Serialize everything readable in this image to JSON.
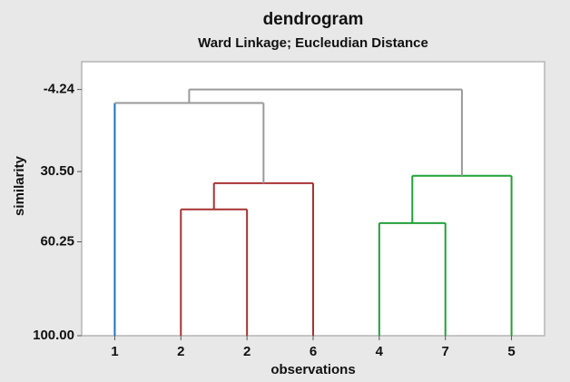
{
  "chart_data": {
    "type": "dendrogram",
    "title": "dendrogram",
    "subtitle": "Ward Linkage; Eucleudian Distance",
    "x_label": "observations",
    "y_label": "similarity",
    "categories": [
      "1",
      "2",
      "2",
      "6",
      "4",
      "7",
      "5"
    ],
    "leaf_colors": [
      "#1f6fc4",
      "#a83232",
      "#a83232",
      "#a83232",
      "#22a03a",
      "#22a03a",
      "#22a03a"
    ],
    "merges": [
      {
        "children": [
          1,
          2
        ],
        "height": 46.5,
        "color": "#a83232"
      },
      {
        "children": [
          7,
          3
        ],
        "height": 35.4,
        "color": "#a83232"
      },
      {
        "children": [
          0,
          8
        ],
        "height": 1.5,
        "color": "#9a9a9a"
      },
      {
        "children": [
          4,
          5
        ],
        "height": 52.3,
        "color": "#22a03a"
      },
      {
        "children": [
          10,
          6
        ],
        "height": 32.3,
        "color": "#22a03a"
      },
      {
        "children": [
          9,
          11
        ],
        "height": -4.24,
        "color": "#9a9a9a"
      }
    ],
    "ylim": [
      100,
      -16
    ],
    "yticks": [
      -4.24,
      {
        "value": 30.5,
        "label": "30.50"
      },
      {
        "value": 60.25,
        "label": "60.25"
      },
      {
        "value": 100,
        "label": "100.00"
      }
    ]
  }
}
